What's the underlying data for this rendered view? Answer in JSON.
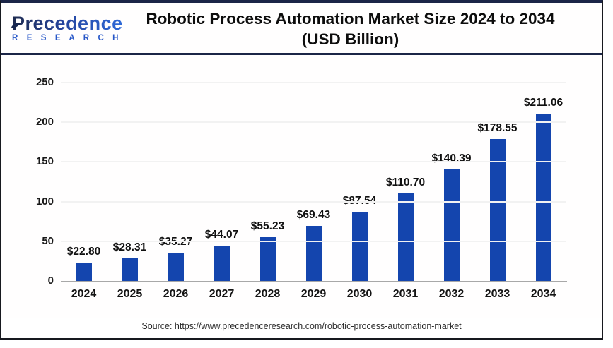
{
  "header": {
    "logo_line1": "Precedence",
    "logo_line2": "R E S E A R C H",
    "title_line1": "Robotic Process Automation Market Size 2024 to 2034",
    "title_line2": "(USD Billion)"
  },
  "chart_data": {
    "type": "bar",
    "title": "Robotic Process Automation Market Size 2024 to 2034 (USD Billion)",
    "categories": [
      "2024",
      "2025",
      "2026",
      "2027",
      "2028",
      "2029",
      "2030",
      "2031",
      "2032",
      "2033",
      "2034"
    ],
    "values": [
      22.8,
      28.31,
      35.27,
      44.07,
      55.23,
      69.43,
      87.54,
      110.7,
      140.39,
      178.55,
      211.06
    ],
    "data_labels": [
      "$22.80",
      "$28.31",
      "$35.27",
      "$44.07",
      "$55.23",
      "$69.43",
      "$87.54",
      "$110.70",
      "$140.39",
      "$178.55",
      "$211.06"
    ],
    "xlabel": "",
    "ylabel": "",
    "ylim": [
      0,
      250
    ],
    "yticks": [
      0,
      50,
      100,
      150,
      200,
      250
    ],
    "grid": "horizontal-light",
    "legend": "none",
    "bar_color": "#1445ae",
    "baseline_color": "#a8a8a8",
    "gridline_color": "#f2f2f2"
  },
  "footer": {
    "source": "Source: https://www.precedenceresearch.com/robotic-process-automation-market"
  },
  "colors": {
    "frame_border": "#17191f",
    "accent_navy": "#1b2547",
    "logo_blue": "#2757c8",
    "bar_blue": "#1445ae"
  }
}
